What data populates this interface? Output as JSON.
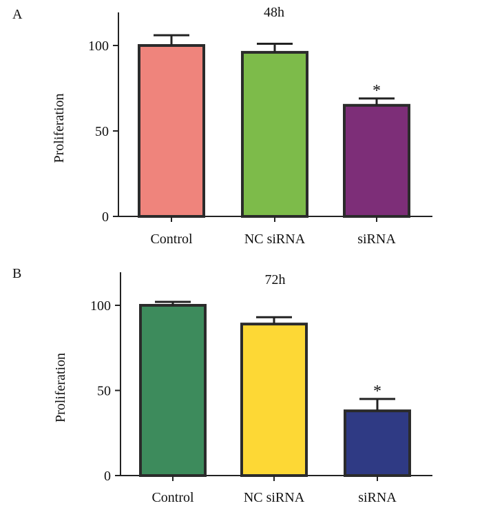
{
  "chart_data": [
    {
      "panel": "A",
      "type": "bar",
      "title": "48h",
      "ylabel": "Proliferation",
      "xlabel": "",
      "ylim": [
        0,
        120
      ],
      "yticks": [
        0,
        50,
        100
      ],
      "categories": [
        "Control",
        "NC siRNA",
        "siRNA"
      ],
      "values": [
        100,
        96,
        65
      ],
      "errors": [
        6,
        5,
        4
      ],
      "significance": [
        "",
        "",
        "*"
      ],
      "colors": [
        "#ef847c",
        "#7dbb4a",
        "#7d2e78"
      ]
    },
    {
      "panel": "B",
      "type": "bar",
      "title": "72h",
      "ylabel": "Proliferation",
      "xlabel": "",
      "ylim": [
        0,
        120
      ],
      "yticks": [
        0,
        50,
        100
      ],
      "categories": [
        "Control",
        "NC siRNA",
        "siRNA"
      ],
      "values": [
        100,
        89,
        38
      ],
      "errors": [
        2,
        4,
        7
      ],
      "significance": [
        "",
        "",
        "*"
      ],
      "colors": [
        "#3d8b5c",
        "#fdd835",
        "#2f3a84"
      ]
    }
  ]
}
